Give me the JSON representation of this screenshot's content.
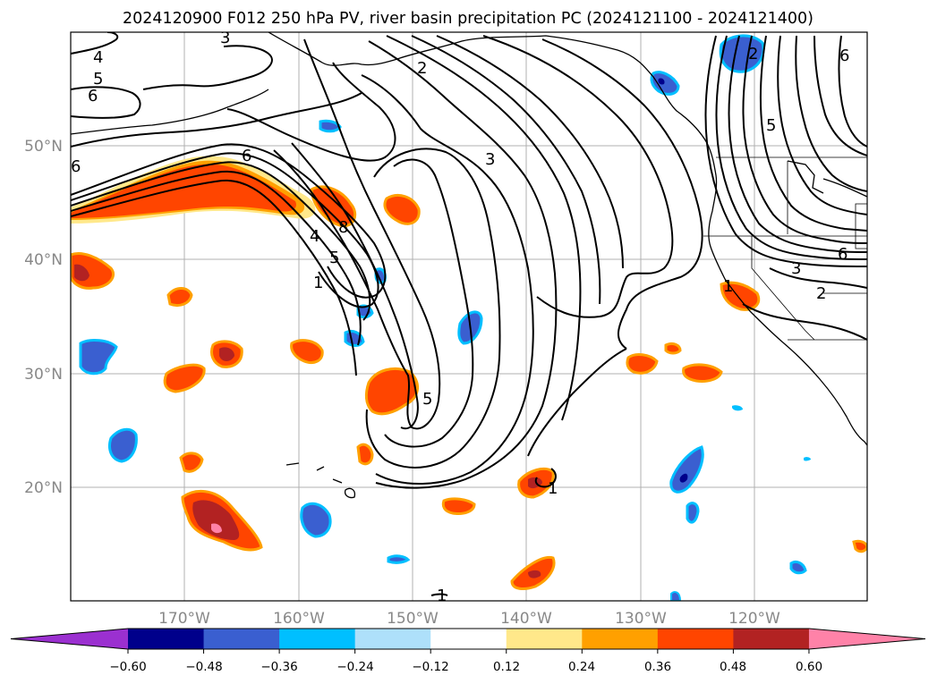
{
  "title": "2024120900 F012 250 hPa PV, river basin precipitation PC (2024121100 - 2024121400)",
  "latitudes": [
    "50°N",
    "40°N",
    "30°N",
    "20°N"
  ],
  "longitudes": [
    "170°W",
    "160°W",
    "150°W",
    "140°W",
    "130°W",
    "120°W"
  ],
  "colorbar": {
    "ticks": [
      "−0.60",
      "−0.48",
      "−0.36",
      "−0.24",
      "−0.12",
      "0.12",
      "0.24",
      "0.36",
      "0.48",
      "0.60"
    ],
    "colors": [
      "#9b30d0",
      "#00008b",
      "#3a5fd0",
      "#00bfff",
      "#aee0fa",
      "#ffffff",
      "#ffe88a",
      "#ffa000",
      "#ff4500",
      "#b22222",
      "#ff82a8"
    ]
  },
  "contour_labels": [
    "4",
    "5",
    "6",
    "6",
    "2",
    "3",
    "8",
    "4",
    "5",
    "1",
    "5",
    "1",
    "2",
    "5",
    "6",
    "3",
    "6",
    "2",
    "3",
    "6",
    "1",
    "1"
  ]
}
